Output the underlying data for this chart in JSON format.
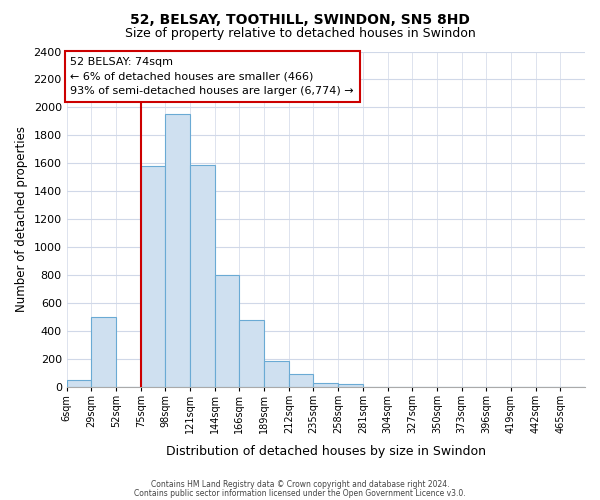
{
  "title": "52, BELSAY, TOOTHILL, SWINDON, SN5 8HD",
  "subtitle": "Size of property relative to detached houses in Swindon",
  "xlabel": "Distribution of detached houses by size in Swindon",
  "ylabel": "Number of detached properties",
  "bar_color": "#cfe0f0",
  "bar_edge_color": "#6aaad4",
  "bin_labels": [
    "6sqm",
    "29sqm",
    "52sqm",
    "75sqm",
    "98sqm",
    "121sqm",
    "144sqm",
    "166sqm",
    "189sqm",
    "212sqm",
    "235sqm",
    "258sqm",
    "281sqm",
    "304sqm",
    "327sqm",
    "350sqm",
    "373sqm",
    "396sqm",
    "419sqm",
    "442sqm",
    "465sqm"
  ],
  "bar_heights": [
    50,
    500,
    0,
    1580,
    1950,
    1590,
    800,
    480,
    185,
    90,
    30,
    25,
    0,
    0,
    0,
    0,
    0,
    0,
    0,
    0,
    0
  ],
  "ylim": [
    0,
    2400
  ],
  "yticks": [
    0,
    200,
    400,
    600,
    800,
    1000,
    1200,
    1400,
    1600,
    1800,
    2000,
    2200,
    2400
  ],
  "property_line_bin": 3,
  "annotation_title": "52 BELSAY: 74sqm",
  "annotation_line1": "← 6% of detached houses are smaller (466)",
  "annotation_line2": "93% of semi-detached houses are larger (6,774) →",
  "annotation_box_color": "#ffffff",
  "annotation_box_edge": "#cc0000",
  "vline_color": "#cc0000",
  "footer1": "Contains HM Land Registry data © Crown copyright and database right 2024.",
  "footer2": "Contains public sector information licensed under the Open Government Licence v3.0.",
  "background_color": "#ffffff",
  "grid_color": "#d0d8e8"
}
